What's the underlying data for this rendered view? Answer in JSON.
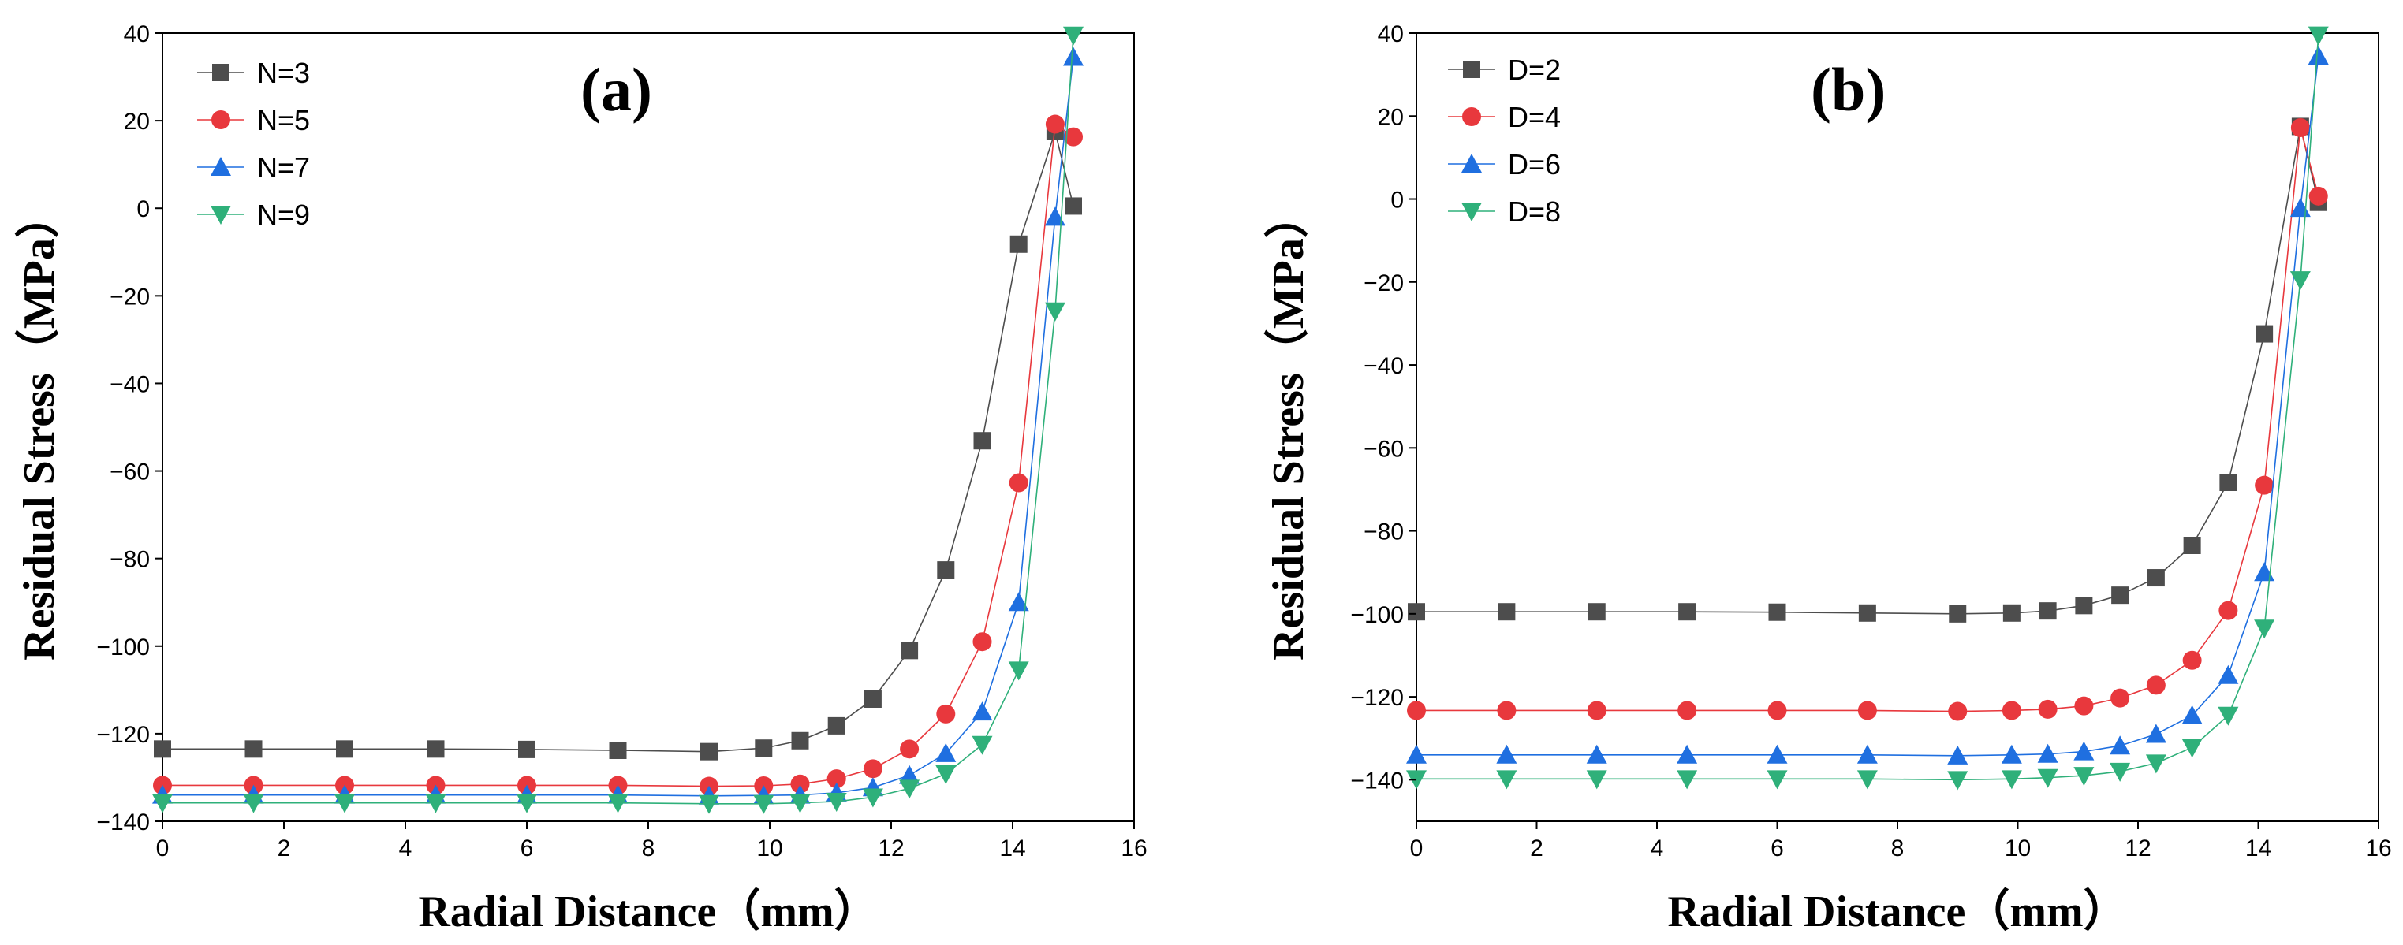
{
  "chart_data": [
    {
      "type": "line",
      "panel_label": "(a)",
      "xlabel": "Radial Distance（mm）",
      "ylabel": "Residual Stress（MPa）",
      "xlim": [
        0,
        16
      ],
      "ylim": [
        -140,
        40
      ],
      "xticks": [
        "0",
        "2",
        "4",
        "6",
        "8",
        "10",
        "12",
        "14",
        "16"
      ],
      "yticks": [
        "-140",
        "-120",
        "-100",
        "-80",
        "-60",
        "-40",
        "-20",
        "0",
        "20",
        "40"
      ],
      "x": [
        0,
        1.5,
        3,
        4.5,
        6,
        7.5,
        9,
        9.9,
        10.5,
        11.1,
        11.7,
        12.3,
        12.9,
        13.5,
        14.1,
        14.7,
        15
      ],
      "legend_position": "top-left",
      "series": [
        {
          "name": "N=3",
          "marker": "square",
          "color": "#4d4d4d",
          "values": [
            -123.5,
            -123.5,
            -123.5,
            -123.5,
            -123.6,
            -123.8,
            -124.1,
            -123.3,
            -121.6,
            -118.2,
            -112.1,
            -101,
            -82.6,
            -53.1,
            -8.2,
            17.5,
            0.5
          ]
        },
        {
          "name": "N=5",
          "marker": "circle",
          "color": "#e8383d",
          "values": [
            -131.8,
            -131.8,
            -131.8,
            -131.8,
            -131.8,
            -131.8,
            -132,
            -131.9,
            -131.5,
            -130.3,
            -128,
            -123.5,
            -115.5,
            -99,
            -62.7,
            19.2,
            16.3
          ]
        },
        {
          "name": "N=7",
          "marker": "triangle-up",
          "color": "#1f6fe0",
          "values": [
            -134,
            -134,
            -134,
            -134,
            -134,
            -134,
            -134.2,
            -134.1,
            -134,
            -133.5,
            -132.3,
            -129.5,
            -124.5,
            -115,
            -90,
            -2,
            34.5
          ]
        },
        {
          "name": "N=9",
          "marker": "triangle-down",
          "color": "#2fb07a",
          "values": [
            -135.8,
            -135.8,
            -135.8,
            -135.8,
            -135.8,
            -135.8,
            -136,
            -136,
            -135.8,
            -135.5,
            -134.5,
            -132.5,
            -129.2,
            -122.5,
            -105.5,
            -23.5,
            39.5
          ]
        }
      ]
    },
    {
      "type": "line",
      "panel_label": "(b)",
      "xlabel": "Radial Distance（mm）",
      "ylabel": "Residual Stress（MPa）",
      "xlim": [
        0,
        16
      ],
      "ylim": [
        -150,
        40
      ],
      "xticks": [
        "0",
        "2",
        "4",
        "6",
        "8",
        "10",
        "12",
        "14",
        "16"
      ],
      "yticks": [
        "-140",
        "-120",
        "-100",
        "-80",
        "-60",
        "-40",
        "-20",
        "0",
        "20",
        "40"
      ],
      "x": [
        0,
        1.5,
        3,
        4.5,
        6,
        7.5,
        9,
        9.9,
        10.5,
        11.1,
        11.7,
        12.3,
        12.9,
        13.5,
        14.1,
        14.7,
        15
      ],
      "legend_position": "top-left",
      "series": [
        {
          "name": "D=2",
          "marker": "square",
          "color": "#4d4d4d",
          "values": [
            -99.5,
            -99.5,
            -99.5,
            -99.5,
            -99.6,
            -99.8,
            -100,
            -99.8,
            -99.3,
            -98,
            -95.5,
            -91.3,
            -83.5,
            -68.3,
            -32.5,
            17.5,
            -0.8
          ]
        },
        {
          "name": "D=4",
          "marker": "circle",
          "color": "#e8383d",
          "values": [
            -123.3,
            -123.3,
            -123.3,
            -123.3,
            -123.3,
            -123.3,
            -123.5,
            -123.3,
            -123,
            -122.2,
            -120.3,
            -117.2,
            -111.2,
            -99.2,
            -69,
            17.2,
            0.7
          ]
        },
        {
          "name": "D=6",
          "marker": "triangle-up",
          "color": "#1f6fe0",
          "values": [
            -134,
            -134,
            -134,
            -134,
            -134,
            -134,
            -134.2,
            -134,
            -133.8,
            -133.2,
            -131.8,
            -129,
            -124.5,
            -114.8,
            -90,
            -2.2,
            34.5
          ]
        },
        {
          "name": "D=8",
          "marker": "triangle-down",
          "color": "#2fb07a",
          "values": [
            -139.8,
            -139.8,
            -139.8,
            -139.8,
            -139.8,
            -139.8,
            -140,
            -139.8,
            -139.5,
            -139,
            -138,
            -136,
            -132.2,
            -124.5,
            -103.5,
            -19.5,
            39.5
          ]
        }
      ]
    }
  ]
}
